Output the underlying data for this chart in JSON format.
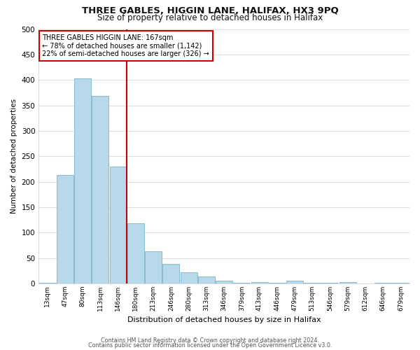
{
  "title": "THREE GABLES, HIGGIN LANE, HALIFAX, HX3 9PQ",
  "subtitle": "Size of property relative to detached houses in Halifax",
  "xlabel": "Distribution of detached houses by size in Halifax",
  "ylabel": "Number of detached properties",
  "bar_labels": [
    "13sqm",
    "47sqm",
    "80sqm",
    "113sqm",
    "146sqm",
    "180sqm",
    "213sqm",
    "246sqm",
    "280sqm",
    "313sqm",
    "346sqm",
    "379sqm",
    "413sqm",
    "446sqm",
    "479sqm",
    "513sqm",
    "546sqm",
    "579sqm",
    "612sqm",
    "646sqm",
    "679sqm"
  ],
  "bar_values": [
    2,
    213,
    403,
    369,
    230,
    118,
    63,
    39,
    22,
    14,
    5,
    2,
    3,
    1,
    6,
    1,
    1,
    3,
    0,
    1,
    2
  ],
  "bar_color": "#b8d9ea",
  "bar_edge_color": "#7ab3cc",
  "ref_line_index": 4.5,
  "reference_line_label": "THREE GABLES HIGGIN LANE: 167sqm",
  "annotation_line1": "← 78% of detached houses are smaller (1,142)",
  "annotation_line2": "22% of semi-detached houses are larger (326) →",
  "annotation_box_color": "#ffffff",
  "annotation_box_edge": "#cc0000",
  "ref_line_color": "#cc0000",
  "ylim": [
    0,
    500
  ],
  "yticks": [
    0,
    50,
    100,
    150,
    200,
    250,
    300,
    350,
    400,
    450,
    500
  ],
  "background_color": "#ffffff",
  "grid_color": "#e0e0e0",
  "footer1": "Contains HM Land Registry data © Crown copyright and database right 2024.",
  "footer2": "Contains public sector information licensed under the Open Government Licence v3.0."
}
